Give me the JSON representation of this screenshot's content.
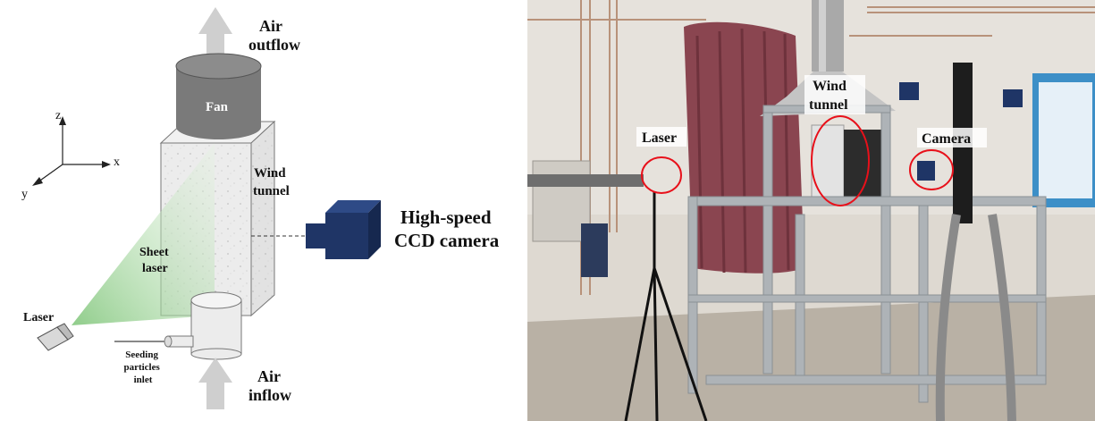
{
  "schematic": {
    "air_outflow": [
      "Air",
      "outflow"
    ],
    "fan": "Fan",
    "wind_tunnel": [
      "Wind",
      "tunnel"
    ],
    "camera": [
      "High-speed",
      "CCD camera"
    ],
    "sheet_laser": [
      "Sheet",
      "laser"
    ],
    "laser": "Laser",
    "seeding": [
      "Seeding",
      "particles",
      "inlet"
    ],
    "air_inflow": [
      "Air",
      "inflow"
    ],
    "axes": {
      "z": "z",
      "x": "x",
      "y": "y"
    }
  },
  "photo": {
    "laser_label": "Laser",
    "wind_tunnel_label": [
      "Wind",
      "tunnel"
    ],
    "camera_label": "Camera",
    "annotation_color": "#e8101a"
  },
  "colors": {
    "fan": "#7a7a7a",
    "fan_top": "#8c8c8c",
    "arrow": "#cfcfcf",
    "camera_body": "#1f3566",
    "sheet_laser": "#9fd49a"
  }
}
